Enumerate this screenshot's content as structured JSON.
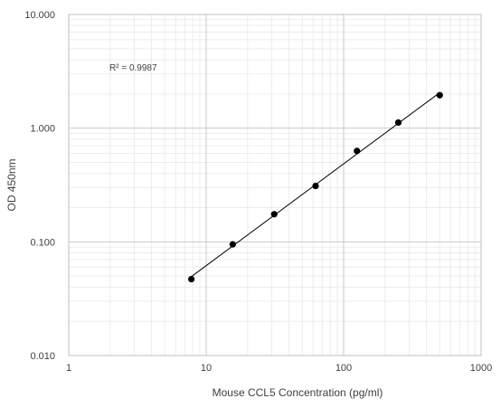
{
  "chart_data": {
    "type": "scatter",
    "xscale": "log",
    "yscale": "log",
    "xlim": [
      1,
      1000
    ],
    "ylim": [
      0.01,
      10
    ],
    "x_ticks": [
      1,
      10,
      100,
      1000
    ],
    "x_tick_labels": [
      "1",
      "10",
      "100",
      "1000"
    ],
    "y_ticks": [
      0.01,
      0.1,
      1,
      10
    ],
    "y_tick_labels": [
      "0.010",
      "0.100",
      "1.000",
      "10.000"
    ],
    "xlabel": "Mouse CCL5  Concentration (pg/ml)",
    "ylabel": "OD 450nm",
    "annotation": "R² = 0.9987",
    "grid": true,
    "trendline": "power",
    "marker_color": "#000000",
    "line_color": "#000000",
    "series": [
      {
        "x": [
          7.8,
          15.6,
          31.25,
          62.5,
          125,
          250,
          500
        ],
        "y": [
          0.047,
          0.095,
          0.175,
          0.31,
          0.63,
          1.12,
          1.95
        ]
      }
    ]
  }
}
